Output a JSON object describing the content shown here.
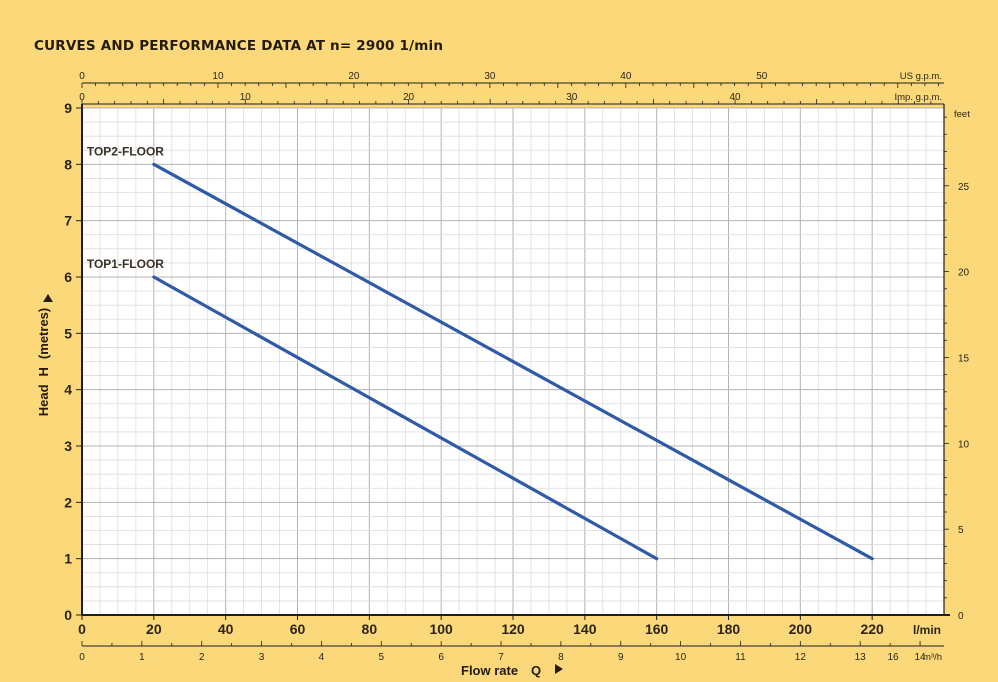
{
  "chart_data": {
    "type": "line",
    "title": "CURVES AND PERFORMANCE DATA AT n= 2900  1/min",
    "grid": true,
    "x": {
      "label": "Flow rate",
      "symbol": "Q",
      "unit": "l/min",
      "range": [
        0,
        240
      ],
      "ticks": [
        0,
        20,
        40,
        60,
        80,
        100,
        120,
        140,
        160,
        180,
        200,
        220
      ]
    },
    "x_m3h": {
      "unit": "m³/h",
      "range": [
        0,
        14.4
      ],
      "ticks": [
        0,
        1,
        2,
        3,
        4,
        5,
        6,
        7,
        8,
        9,
        10,
        11,
        12,
        13,
        14
      ]
    },
    "x_m3h_extra_tick": "16",
    "x_us_gpm": {
      "unit": "US g.p.m.",
      "range": [
        0,
        63.4
      ],
      "ticks": [
        0,
        10,
        20,
        30,
        40,
        50
      ]
    },
    "x_imp_gpm": {
      "unit": "Imp. g.p.m.",
      "range": [
        0,
        52.8
      ],
      "ticks": [
        0,
        10,
        20,
        30,
        40
      ]
    },
    "y": {
      "label": "Head",
      "symbol": "H",
      "unit": "(metres)",
      "range": [
        0,
        9
      ],
      "ticks": [
        0,
        1,
        2,
        3,
        4,
        5,
        6,
        7,
        8,
        9
      ]
    },
    "y_feet": {
      "unit": "feet",
      "range": [
        0,
        29.53
      ],
      "ticks": [
        0,
        5,
        10,
        15,
        20,
        25
      ]
    },
    "series": [
      {
        "name": "TOP2-FLOOR",
        "color": "#2f5aa8",
        "points": [
          [
            20,
            8
          ],
          [
            220,
            1
          ]
        ]
      },
      {
        "name": "TOP1-FLOOR",
        "color": "#2f5aa8",
        "points": [
          [
            20,
            6
          ],
          [
            160,
            1
          ]
        ]
      }
    ]
  }
}
